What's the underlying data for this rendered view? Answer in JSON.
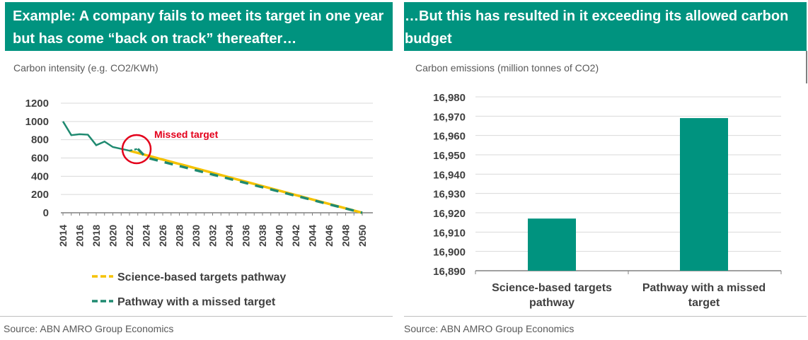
{
  "left_panel": {
    "banner_title": "Example: A company fails to meet its target in one year but has come “back on track” thereafter…",
    "subtitle": "Carbon intensity (e.g. CO2/KWh)",
    "source": "Source: ABN AMRO Group Economics",
    "annotation": "Missed target"
  },
  "right_panel": {
    "banner_title": "…But this has resulted in it exceeding its allowed carbon budget",
    "subtitle": "Carbon emissions (million tonnes of CO2)",
    "source": "Source: ABN AMRO Group Economics"
  },
  "colors": {
    "banner": "#00937f",
    "science_based": "#f5c200",
    "missed_target": "#1f8a70",
    "bar": "#00937f",
    "annotation": "#e3001b"
  },
  "chart_data": [
    {
      "type": "line",
      "title": "Carbon intensity (e.g. CO2/KWh)",
      "xlabel": "",
      "ylabel": "",
      "ylim": [
        0,
        1200
      ],
      "yticks": [
        0,
        200,
        400,
        600,
        800,
        1000,
        1200
      ],
      "xticks": [
        "2014",
        "2016",
        "2018",
        "2020",
        "2022",
        "2024",
        "2026",
        "2028",
        "2030",
        "2032",
        "2034",
        "2036",
        "2038",
        "2040",
        "2042",
        "2044",
        "2046",
        "2048",
        "2050"
      ],
      "grid": true,
      "legend_position": "bottom",
      "series": [
        {
          "name": "Science-based targets pathway",
          "style": "solid",
          "points": [
            [
              2022,
              680
            ],
            [
              2050,
              0
            ]
          ]
        },
        {
          "name": "Pathway with a missed target",
          "style": "dashed-after-2023",
          "points": [
            [
              2014,
              1000
            ],
            [
              2015,
              850
            ],
            [
              2016,
              860
            ],
            [
              2017,
              855
            ],
            [
              2018,
              740
            ],
            [
              2019,
              780
            ],
            [
              2020,
              720
            ],
            [
              2021,
              700
            ],
            [
              2022,
              680
            ],
            [
              2023,
              700
            ],
            [
              2024,
              605
            ],
            [
              2050,
              0
            ]
          ]
        }
      ]
    },
    {
      "type": "bar",
      "title": "Carbon emissions (million tonnes of CO2)",
      "xlabel": "",
      "ylabel": "",
      "ylim": [
        16890,
        16980
      ],
      "yticks": [
        "16,890",
        "16,900",
        "16,910",
        "16,920",
        "16,930",
        "16,940",
        "16,950",
        "16,960",
        "16,970",
        "16,980"
      ],
      "grid": true,
      "categories": [
        "Science-based targets pathway",
        "Pathway with a missed target"
      ],
      "values": [
        16917,
        16969
      ]
    }
  ]
}
